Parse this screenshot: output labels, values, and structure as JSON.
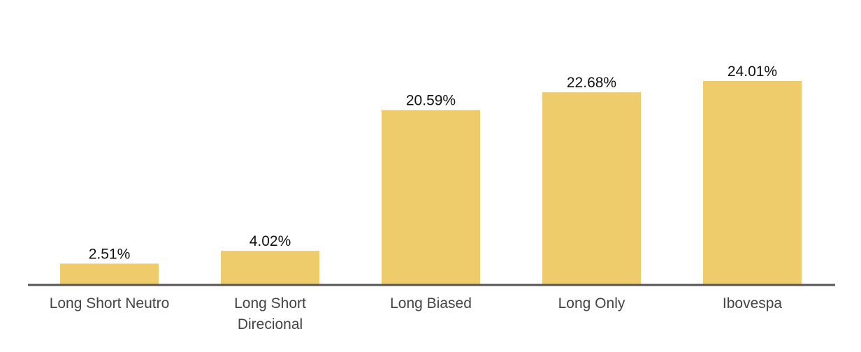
{
  "colors": {
    "bar": "#EECB6B",
    "axis": "#555555"
  },
  "chart_data": {
    "type": "bar",
    "categories": [
      [
        "Long Short Neutro"
      ],
      [
        "Long Short",
        "Direcional"
      ],
      [
        "Long Biased"
      ],
      [
        "Long Only"
      ],
      [
        "Ibovespa"
      ]
    ],
    "values": [
      2.51,
      4.02,
      20.59,
      22.68,
      24.01
    ],
    "value_labels": [
      "2.51%",
      "4.02%",
      "20.59%",
      "22.68%",
      "24.01%"
    ],
    "title": "",
    "xlabel": "",
    "ylabel": "",
    "ylim": [
      0,
      24.01
    ],
    "grid": false,
    "legend": "none"
  }
}
